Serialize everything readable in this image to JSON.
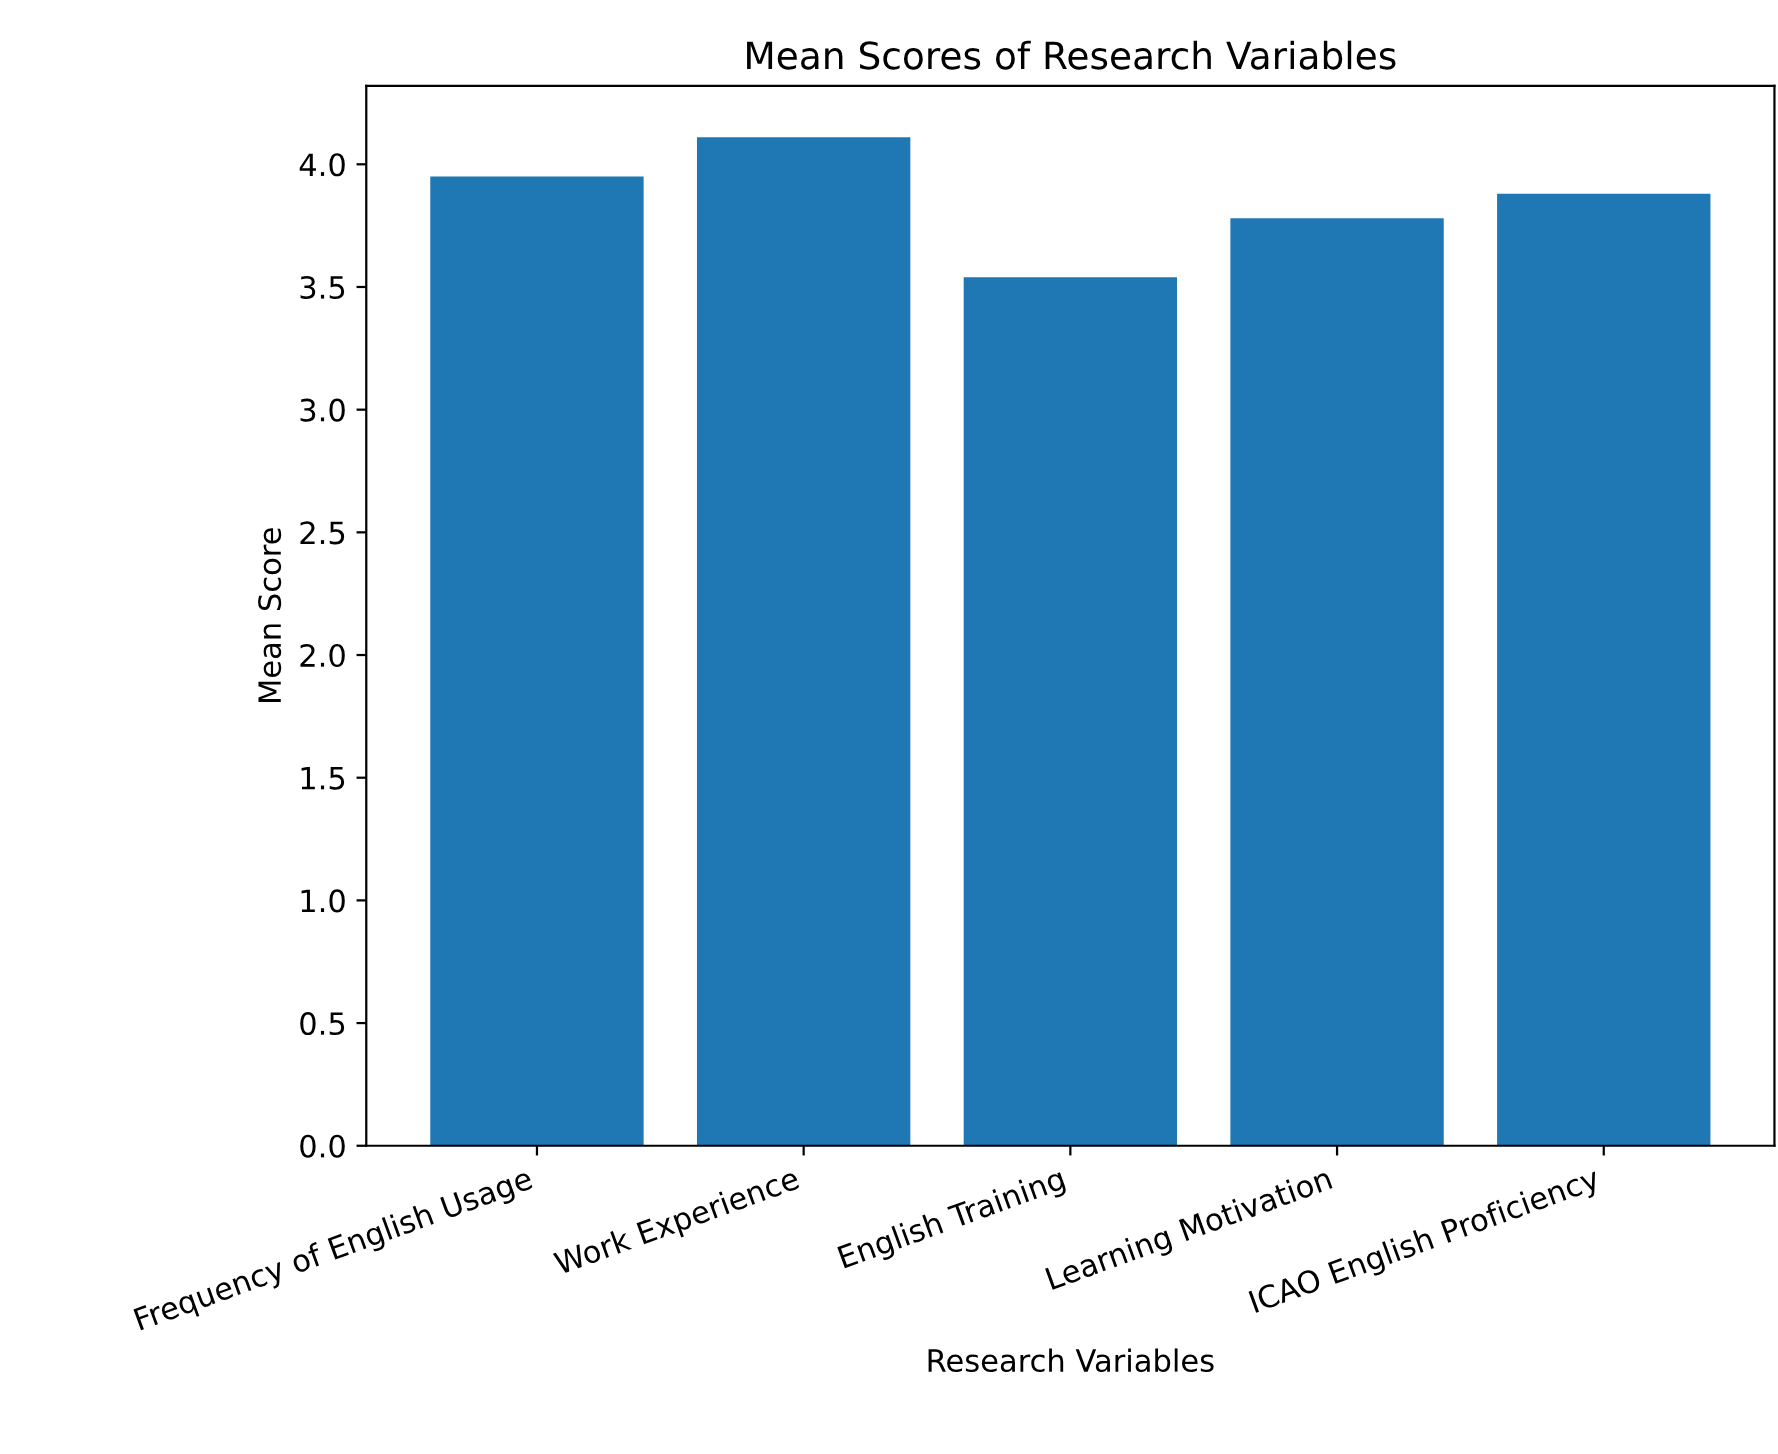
{
  "chart_data": {
    "type": "bar",
    "title": "Mean Scores of Research Variables",
    "xlabel": "Research Variables",
    "ylabel": "Mean Score",
    "categories": [
      "Frequency of English Usage",
      "Work Experience",
      "English Training",
      "Learning Motivation",
      "ICAO English Proficiency"
    ],
    "values": [
      3.95,
      4.11,
      3.54,
      3.78,
      3.88
    ],
    "color": "#1f77b4",
    "ylim": [
      0,
      4.32
    ],
    "yticks": [
      {
        "value": 0,
        "label": "0.0"
      },
      0.5,
      {
        "value": 1,
        "label": "1.0"
      },
      1.5,
      {
        "value": 2,
        "label": "2.0"
      },
      2.5,
      {
        "value": 3,
        "label": "3.0"
      },
      3.5,
      {
        "value": 4,
        "label": "4.0"
      }
    ],
    "grid": false,
    "legend": false
  }
}
